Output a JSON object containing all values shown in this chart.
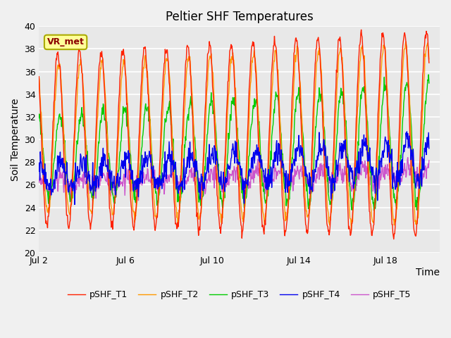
{
  "title": "Peltier SHF Temperatures",
  "ylabel": "Soil Temperature",
  "xlabel": "Time",
  "annotation": "VR_met",
  "ylim": [
    20,
    40
  ],
  "yticks": [
    20,
    22,
    24,
    26,
    28,
    30,
    32,
    34,
    36,
    38,
    40
  ],
  "xtick_labels": [
    "Jul 2",
    "Jul 6",
    "Jul 10",
    "Jul 14",
    "Jul 18"
  ],
  "xtick_positions": [
    1,
    5,
    9,
    13,
    17
  ],
  "series_colors": {
    "pSHF_T1": "#ff2000",
    "pSHF_T2": "#ff9900",
    "pSHF_T3": "#00cc00",
    "pSHF_T4": "#0000ee",
    "pSHF_T5": "#cc55cc"
  },
  "plot_bg_color": "#e8e8e8",
  "fig_bg_color": "#f0f0f0",
  "grid_color": "#ffffff",
  "title_fontsize": 12,
  "axis_label_fontsize": 10,
  "tick_fontsize": 9,
  "legend_fontsize": 9,
  "linewidth": 1.0
}
